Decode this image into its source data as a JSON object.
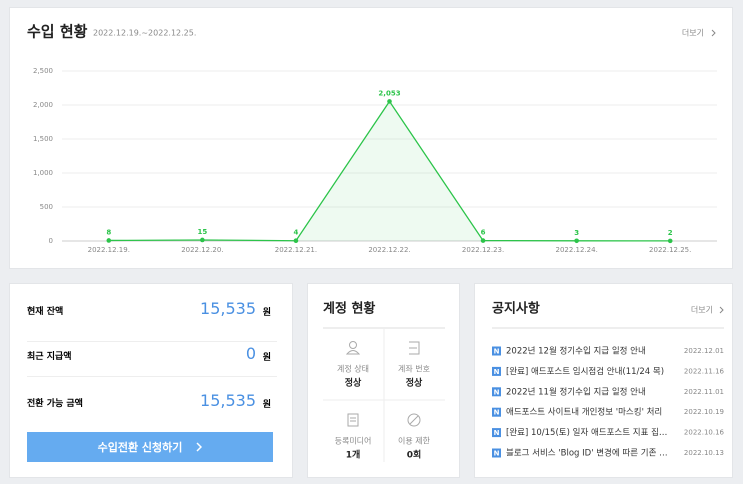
{
  "revenue": {
    "title": "수입 현황",
    "period": "2022.12.19.~2022.12.25.",
    "more": "더보기"
  },
  "chart_data": {
    "type": "line",
    "categories": [
      "2022.12.19.",
      "2022.12.20.",
      "2022.12.21.",
      "2022.12.22.",
      "2022.12.23.",
      "2022.12.24.",
      "2022.12.25."
    ],
    "values": [
      8,
      15,
      4,
      2053,
      6,
      3,
      2
    ],
    "value_labels": [
      "8",
      "15",
      "4",
      "2,053",
      "6",
      "3",
      "2"
    ],
    "color": "#2cc44a",
    "ylim": [
      0,
      2500
    ],
    "yticks": [
      0,
      500,
      {
        "value": 1000,
        "label": "1,000"
      },
      {
        "value": 1500,
        "label": "1,500"
      },
      {
        "value": 2000,
        "label": "2,000"
      },
      {
        "value": 2500,
        "label": "2,500"
      }
    ],
    "grid": true
  },
  "balance": {
    "rows": [
      {
        "label": "현재 잔액",
        "amount": "15,535",
        "unit": "원"
      },
      {
        "label": "최근 지급액",
        "amount": "0",
        "unit": "원"
      },
      {
        "label": "전환 가능 금액",
        "amount": "15,535",
        "unit": "원"
      }
    ],
    "button": "수입전환 신청하기"
  },
  "account": {
    "title": "계정 현황",
    "cells": [
      {
        "label": "계정 상태",
        "value": "정상"
      },
      {
        "label": "계좌 번호",
        "value": "정상"
      },
      {
        "label": "등록미디어",
        "value": "1개"
      },
      {
        "label": "이용 제한",
        "value": "0회"
      }
    ]
  },
  "notices": {
    "title": "공지사항",
    "more": "더보기",
    "badge": "N",
    "items": [
      {
        "title": "2022년 12월 정기수입 지급 일정 안내",
        "date": "2022.12.01"
      },
      {
        "title": "[완료] 애드포스트 임시점검 안내(11/24 목)",
        "date": "2022.11.16"
      },
      {
        "title": "2022년 11월 정기수입 지급 일정 안내",
        "date": "2022.11.01"
      },
      {
        "title": "애드포스트 사이트내 개인정보 '마스킹' 처리",
        "date": "2022.10.19"
      },
      {
        "title": "[완료] 10/15(토) 일자 애드포스트 지표 집…",
        "date": "2022.10.16"
      },
      {
        "title": "블로그 서비스 'Blog ID' 변경에 따른 기존 …",
        "date": "2022.10.13"
      }
    ]
  }
}
